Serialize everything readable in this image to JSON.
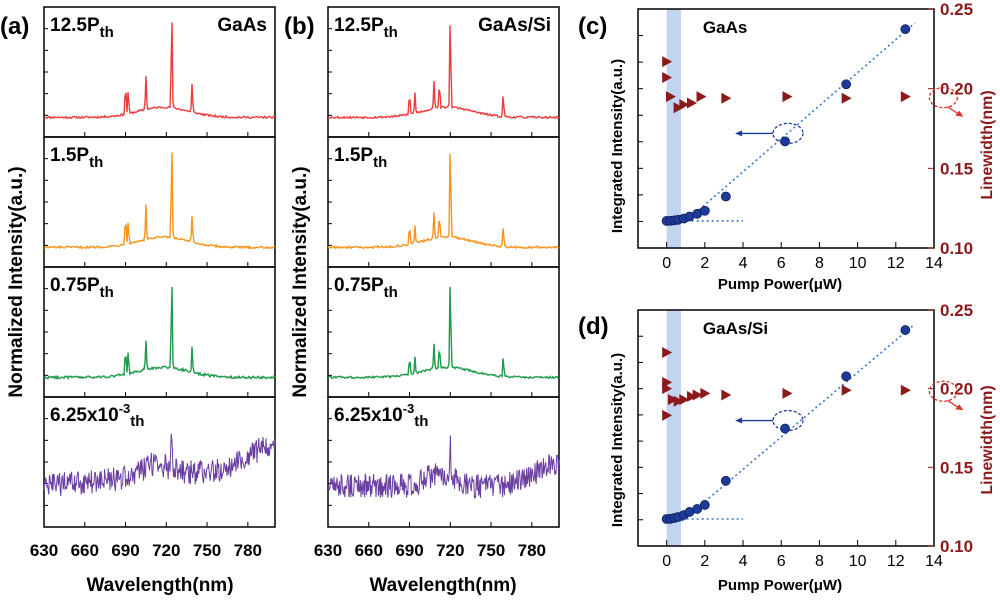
{
  "figure": {
    "panel_a_label": "(a)",
    "panel_b_label": "(b)",
    "panel_c_label": "(c)",
    "panel_d_label": "(d)",
    "spectra_ylabel": "Normalized Intensity(a.u.)",
    "spectra_xlabel": "Wavelength(nm)",
    "pump_xlabel": "Pump Power(μW)",
    "integrated_ylabel": "Integrated Intensity(a.u.)",
    "linewidth_ylabel": "Linewidth(nm)",
    "material_c": "GaAs",
    "material_d": "GaAs/Si",
    "colors": {
      "trace_12_5": "#ee3b3b",
      "trace_1_5": "#f7941d",
      "trace_0_75": "#1e9a4a",
      "trace_low": "#6a3fa0",
      "linewidth_axis": "#8b1a1a",
      "intensity_points": "#1f3b9a",
      "fit_line": "#3a78c3",
      "threshold_band": "#b9cdee"
    }
  },
  "chart_data": [
    {
      "panel": "(a)",
      "type": "line",
      "material": "GaAs",
      "xlabel": "Wavelength(nm)",
      "ylabel": "Normalized Intensity(a.u.)",
      "xlim": [
        630,
        800
      ],
      "xticks": [
        630,
        660,
        690,
        720,
        750,
        780
      ],
      "series": [
        {
          "name": "12.5Pth",
          "name_base": "12.5P",
          "name_sub": "th",
          "name_sup": "",
          "color": "#ee3b3b",
          "peaks": [
            [
              690,
              0.3
            ],
            [
              692,
              0.24
            ],
            [
              705,
              0.34
            ],
            [
              724,
              0.95
            ],
            [
              739,
              0.28
            ]
          ],
          "noise": 0.02
        },
        {
          "name": "1.5Pth",
          "name_base": "1.5P",
          "name_sub": "th",
          "name_sup": "",
          "color": "#f7941d",
          "peaks": [
            [
              690,
              0.3
            ],
            [
              692,
              0.24
            ],
            [
              705,
              0.34
            ],
            [
              724,
              0.95
            ],
            [
              739,
              0.27
            ]
          ],
          "noise": 0.02
        },
        {
          "name": "0.75Pth",
          "name_base": "0.75P",
          "name_sub": "th",
          "name_sup": "",
          "color": "#1e9a4a",
          "peaks": [
            [
              690,
              0.26
            ],
            [
              692,
              0.22
            ],
            [
              705,
              0.28
            ],
            [
              724,
              0.9
            ],
            [
              739,
              0.25
            ]
          ],
          "noise": 0.025
        },
        {
          "name": "6.25x10-3Pth",
          "name_base": "6.25x10",
          "name_sup": "-3",
          "name_sub": "th",
          "color": "#6a3fa0",
          "peaks": [
            [
              724,
              0.4
            ]
          ],
          "noise": 0.12
        }
      ]
    },
    {
      "panel": "(b)",
      "type": "line",
      "material": "GaAs/Si",
      "xlabel": "Wavelength(nm)",
      "ylabel": "Normalized Intensity(a.u.)",
      "xlim": [
        630,
        800
      ],
      "xticks": [
        630,
        660,
        690,
        720,
        750,
        780
      ],
      "series": [
        {
          "name": "12.5Pth",
          "name_base": "12.5P",
          "name_sub": "th",
          "name_sup": "",
          "color": "#ee3b3b",
          "peaks": [
            [
              690,
              0.22
            ],
            [
              694,
              0.2
            ],
            [
              708,
              0.28
            ],
            [
              712,
              0.26
            ],
            [
              720,
              0.95
            ],
            [
              759,
              0.22
            ]
          ],
          "noise": 0.02
        },
        {
          "name": "1.5Pth",
          "name_base": "1.5P",
          "name_sub": "th",
          "name_sup": "",
          "color": "#f7941d",
          "peaks": [
            [
              690,
              0.2
            ],
            [
              694,
              0.18
            ],
            [
              708,
              0.26
            ],
            [
              712,
              0.24
            ],
            [
              720,
              0.95
            ],
            [
              759,
              0.2
            ]
          ],
          "noise": 0.02
        },
        {
          "name": "0.75Pth",
          "name_base": "0.75P",
          "name_sub": "th",
          "name_sup": "",
          "color": "#1e9a4a",
          "peaks": [
            [
              690,
              0.18
            ],
            [
              694,
              0.16
            ],
            [
              708,
              0.24
            ],
            [
              712,
              0.22
            ],
            [
              720,
              0.92
            ],
            [
              759,
              0.2
            ]
          ],
          "noise": 0.02
        },
        {
          "name": "6.25x10-3Pth",
          "name_base": "6.25x10",
          "name_sup": "-3",
          "name_sub": "th",
          "color": "#6a3fa0",
          "peaks": [
            [
              720,
              0.45
            ]
          ],
          "noise": 0.12
        }
      ]
    },
    {
      "panel": "(c)",
      "type": "scatter",
      "material": "GaAs",
      "xlabel": "Pump Power(μW)",
      "ylabel": "Integrated Intensity(a.u.)",
      "y2label": "Linewidth(nm)",
      "xlim": [
        -1.5,
        14
      ],
      "xticks": [
        0,
        2,
        4,
        6,
        8,
        10,
        12,
        14
      ],
      "y2lim": [
        0.1,
        0.25
      ],
      "y2ticks": [
        0.1,
        0.15,
        0.2,
        0.25
      ],
      "y2ticklabels": [
        "0.10",
        "0.15",
        "0.20",
        "0.25"
      ],
      "threshold_band": [
        0,
        0.75
      ],
      "integrated_intensity": [
        [
          0.0,
          0.01
        ],
        [
          0.2,
          0.011
        ],
        [
          0.4,
          0.013
        ],
        [
          0.6,
          0.016
        ],
        [
          0.9,
          0.022
        ],
        [
          1.2,
          0.032
        ],
        [
          1.6,
          0.045
        ],
        [
          2.0,
          0.06
        ],
        [
          3.1,
          0.13
        ],
        [
          6.2,
          0.4
        ],
        [
          9.4,
          0.68
        ],
        [
          12.5,
          0.95
        ]
      ],
      "linewidth_nm": [
        [
          0.0,
          0.217
        ],
        [
          0.0,
          0.207
        ],
        [
          0.2,
          0.195
        ],
        [
          0.6,
          0.188
        ],
        [
          0.9,
          0.19
        ],
        [
          1.3,
          0.191
        ],
        [
          1.8,
          0.195
        ],
        [
          3.1,
          0.194
        ],
        [
          6.3,
          0.195
        ],
        [
          9.4,
          0.194
        ],
        [
          12.5,
          0.195
        ]
      ],
      "fit_line": [
        [
          0.9,
          0.0
        ],
        [
          13.0,
          0.98
        ]
      ],
      "baseline": [
        [
          0.0,
          0.01
        ],
        [
          4.0,
          0.01
        ]
      ]
    },
    {
      "panel": "(d)",
      "type": "scatter",
      "material": "GaAs/Si",
      "xlabel": "Pump Power(μW)",
      "ylabel": "Integrated Intensity(a.u.)",
      "y2label": "Linewidth(nm)",
      "xlim": [
        -1.5,
        14
      ],
      "xticks": [
        0,
        2,
        4,
        6,
        8,
        10,
        12,
        14
      ],
      "y2lim": [
        0.1,
        0.25
      ],
      "y2ticks": [
        0.1,
        0.15,
        0.2,
        0.25
      ],
      "y2ticklabels": [
        "0.10",
        "0.15",
        "0.20",
        "0.25"
      ],
      "threshold_band": [
        0,
        0.75
      ],
      "integrated_intensity": [
        [
          0.0,
          0.01
        ],
        [
          0.2,
          0.011
        ],
        [
          0.4,
          0.015
        ],
        [
          0.6,
          0.02
        ],
        [
          0.9,
          0.03
        ],
        [
          1.2,
          0.045
        ],
        [
          1.6,
          0.06
        ],
        [
          2.0,
          0.08
        ],
        [
          3.1,
          0.2
        ],
        [
          6.2,
          0.46
        ],
        [
          9.4,
          0.72
        ],
        [
          12.5,
          0.95
        ]
      ],
      "linewidth_nm": [
        [
          0.0,
          0.223
        ],
        [
          0.0,
          0.204
        ],
        [
          0.0,
          0.2
        ],
        [
          0.0,
          0.183
        ],
        [
          0.3,
          0.193
        ],
        [
          0.6,
          0.192
        ],
        [
          0.9,
          0.193
        ],
        [
          1.3,
          0.195
        ],
        [
          1.6,
          0.196
        ],
        [
          2.0,
          0.197
        ],
        [
          3.1,
          0.196
        ],
        [
          6.3,
          0.197
        ],
        [
          9.4,
          0.199
        ],
        [
          12.5,
          0.199
        ]
      ],
      "fit_line": [
        [
          0.8,
          0.0
        ],
        [
          13.0,
          0.98
        ]
      ],
      "baseline": [
        [
          0.0,
          0.01
        ],
        [
          4.0,
          0.01
        ]
      ]
    }
  ]
}
